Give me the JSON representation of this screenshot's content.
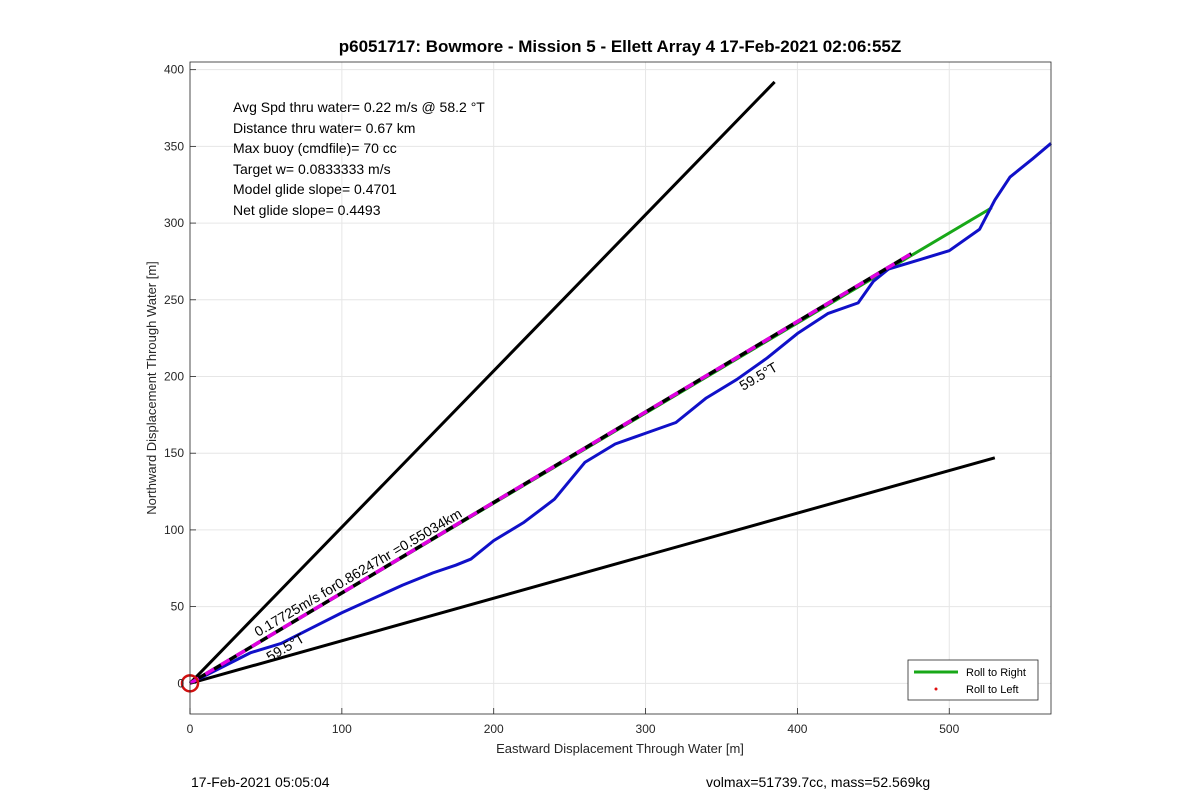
{
  "chart_data": {
    "type": "line",
    "title": "p6051717: Bowmore - Mission 5 - Ellett Array 4 17-Feb-2021 02:06:55Z",
    "xlabel": "Eastward Displacement Through Water [m]",
    "ylabel": "Northward Displacement Through Water [m]",
    "xlim": [
      0,
      567
    ],
    "ylim": [
      -20,
      405
    ],
    "xticks": [
      0,
      100,
      200,
      300,
      400,
      500
    ],
    "yticks": [
      0,
      50,
      100,
      150,
      200,
      250,
      300,
      350,
      400
    ],
    "grid": true,
    "legend_position": "bottom-right",
    "annotations": [
      "Avg Spd thru water=  0.22 m/s @  58.2 °T",
      "Distance thru water=  0.67 km",
      "Max buoy (cmdfile)= 70 cc",
      "Target w= 0.0833333 m/s",
      "Model glide slope= 0.4701",
      "Net glide slope= 0.4493"
    ],
    "line_labels": {
      "speed": "0.17725m/s for0.86247hr =0.55034km",
      "heading1": "59.5°T",
      "heading2": "59.5°T"
    },
    "series": [
      {
        "name": "Roll to Right",
        "color": "#18a818",
        "x": [
          0,
          528
        ],
        "y": [
          0,
          310
        ]
      },
      {
        "name": "Roll to Left",
        "color": "#e01010",
        "x": [],
        "y": []
      },
      {
        "color": "#1010c8",
        "x": [
          0,
          20,
          40,
          60,
          80,
          100,
          120,
          140,
          160,
          175,
          185,
          200,
          220,
          240,
          260,
          280,
          300,
          320,
          340,
          360,
          380,
          400,
          420,
          440,
          450,
          460,
          480,
          500,
          520,
          530,
          540,
          555,
          567
        ],
        "y": [
          0,
          10,
          20,
          26,
          36,
          46,
          55,
          64,
          72,
          77,
          81,
          93,
          105,
          120,
          144,
          156,
          163,
          170,
          186,
          198,
          212,
          228,
          241,
          248,
          262,
          270,
          276,
          282,
          296,
          315,
          330,
          342,
          352
        ]
      },
      {
        "color": "#e000e0",
        "x": [
          0,
          475
        ],
        "y": [
          0,
          280
        ]
      },
      {
        "color": "#000000",
        "x": [
          0,
          385
        ],
        "y": [
          0,
          392
        ]
      },
      {
        "color": "#000000",
        "x": [
          0,
          530
        ],
        "y": [
          0,
          147
        ]
      }
    ],
    "marker": {
      "color": "#d01010",
      "x": 0,
      "y": 0
    }
  },
  "footer": {
    "left": "17-Feb-2021 05:05:04",
    "right": "volmax=51739.7cc, mass=52.569kg"
  }
}
